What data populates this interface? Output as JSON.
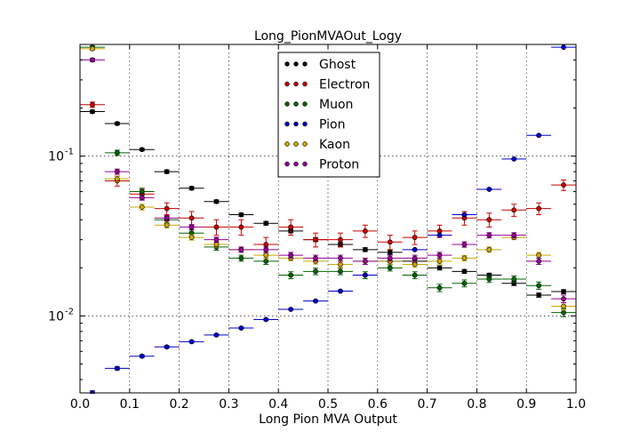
{
  "chart_data": {
    "type": "scatter",
    "title": "Long_PionMVAOut_Logy",
    "xlabel": "Long Pion MVA Output",
    "ylabel": "",
    "xlim": [
      0.0,
      1.0
    ],
    "ylim": [
      0.0033,
      0.5
    ],
    "yscale": "log",
    "grid": true,
    "legend_position": "top-center",
    "x_ticks": [
      "0.0",
      "0.1",
      "0.2",
      "0.3",
      "0.4",
      "0.5",
      "0.6",
      "0.7",
      "0.8",
      "0.9",
      "1.0"
    ],
    "y_ticks": [
      {
        "base": "10",
        "exp": "-1",
        "value": 0.1
      },
      {
        "base": "10",
        "exp": "-2",
        "value": 0.01
      }
    ],
    "x": [
      0.025,
      0.075,
      0.125,
      0.175,
      0.225,
      0.275,
      0.325,
      0.375,
      0.425,
      0.475,
      0.525,
      0.575,
      0.625,
      0.675,
      0.725,
      0.775,
      0.825,
      0.875,
      0.925,
      0.975
    ],
    "bin_halfwidth": 0.025,
    "series": [
      {
        "name": "Ghost",
        "color": "#000000",
        "values": [
          0.19,
          0.16,
          0.11,
          0.08,
          0.063,
          0.052,
          0.043,
          0.038,
          0.034,
          0.03,
          0.028,
          0.026,
          0.025,
          0.022,
          0.02,
          0.019,
          0.018,
          0.016,
          0.0135,
          0.0142
        ],
        "errors": [
          0.004,
          0.003,
          0.002,
          0.002,
          0.0015,
          0.0012,
          0.001,
          0.001,
          0.0009,
          0.0008,
          0.0008,
          0.0007,
          0.0007,
          0.0006,
          0.0006,
          0.0005,
          0.0005,
          0.0005,
          0.0004,
          0.0004
        ]
      },
      {
        "name": "Electron",
        "color": "#cc0000",
        "values": [
          0.21,
          0.07,
          0.058,
          0.047,
          0.041,
          0.036,
          0.036,
          0.028,
          0.036,
          0.03,
          0.03,
          0.034,
          0.029,
          0.031,
          0.034,
          0.041,
          0.04,
          0.046,
          0.047,
          0.066
        ],
        "errors": [
          0.008,
          0.005,
          0.004,
          0.004,
          0.004,
          0.004,
          0.004,
          0.003,
          0.004,
          0.003,
          0.003,
          0.003,
          0.003,
          0.003,
          0.003,
          0.004,
          0.004,
          0.004,
          0.004,
          0.005
        ]
      },
      {
        "name": "Muon",
        "color": "#006600",
        "values": [
          0.48,
          0.105,
          0.06,
          0.04,
          0.033,
          0.027,
          0.023,
          0.022,
          0.018,
          0.019,
          0.019,
          0.018,
          0.02,
          0.018,
          0.015,
          0.016,
          0.017,
          0.017,
          0.0155,
          0.0105
        ],
        "errors": [
          0.01,
          0.004,
          0.003,
          0.002,
          0.0015,
          0.0012,
          0.001,
          0.001,
          0.0009,
          0.0009,
          0.0009,
          0.0009,
          0.0009,
          0.0009,
          0.0008,
          0.0008,
          0.0008,
          0.0008,
          0.0008,
          0.0006
        ]
      },
      {
        "name": "Pion",
        "color": "#0000cc",
        "values": [
          0.0033,
          0.0047,
          0.0056,
          0.0064,
          0.0069,
          0.0076,
          0.0084,
          0.0095,
          0.011,
          0.0124,
          0.0143,
          0.018,
          0.022,
          0.026,
          0.032,
          0.043,
          0.062,
          0.096,
          0.135,
          0.48
        ],
        "errors": [
          0.0001,
          0.0001,
          0.0001,
          0.0001,
          0.0001,
          0.0001,
          0.0001,
          0.0001,
          0.0001,
          0.0001,
          0.0001,
          0.0001,
          0.0002,
          0.0002,
          0.0002,
          0.0003,
          0.0004,
          0.0005,
          0.0006,
          0.001
        ]
      },
      {
        "name": "Kaon",
        "color": "#ccaa00",
        "values": [
          0.47,
          0.072,
          0.048,
          0.037,
          0.031,
          0.028,
          0.026,
          0.024,
          0.023,
          0.022,
          0.021,
          0.022,
          0.022,
          0.021,
          0.022,
          0.023,
          0.026,
          0.031,
          0.024,
          0.0115
        ],
        "errors": [
          0.01,
          0.003,
          0.002,
          0.0015,
          0.0012,
          0.001,
          0.001,
          0.001,
          0.0009,
          0.0009,
          0.0009,
          0.0009,
          0.0009,
          0.0009,
          0.0009,
          0.0009,
          0.001,
          0.001,
          0.001,
          0.0006
        ]
      },
      {
        "name": "Proton",
        "color": "#990099",
        "values": [
          0.4,
          0.08,
          0.055,
          0.041,
          0.036,
          0.03,
          0.026,
          0.026,
          0.024,
          0.023,
          0.023,
          0.022,
          0.023,
          0.023,
          0.024,
          0.028,
          0.032,
          0.032,
          0.022,
          0.0128
        ],
        "errors": [
          0.01,
          0.003,
          0.002,
          0.0015,
          0.0013,
          0.0011,
          0.001,
          0.001,
          0.001,
          0.001,
          0.001,
          0.001,
          0.001,
          0.001,
          0.001,
          0.0011,
          0.0012,
          0.0012,
          0.001,
          0.0007
        ]
      }
    ]
  }
}
